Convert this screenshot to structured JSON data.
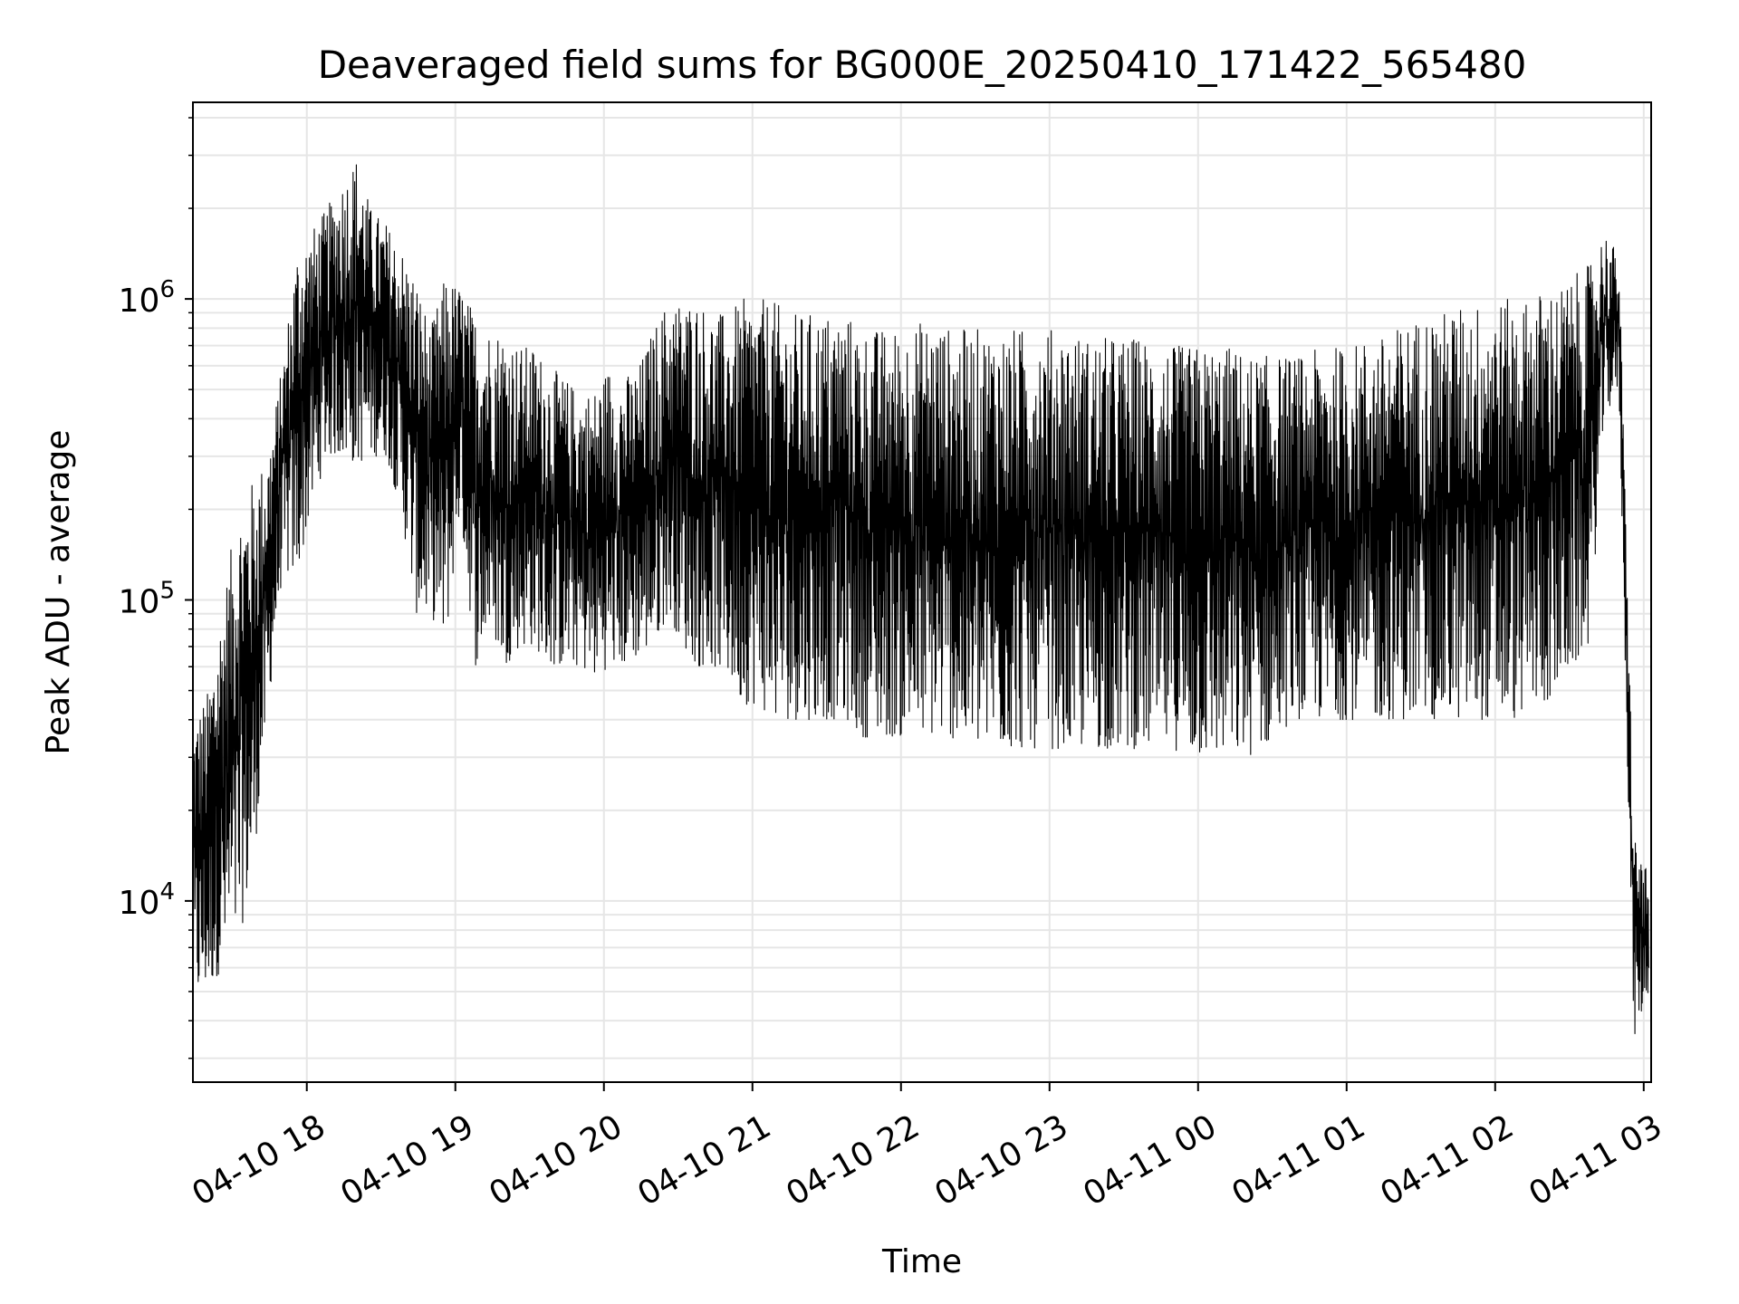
{
  "chart_data": {
    "type": "line",
    "title": "Deaveraged field sums for BG000E_20250410_171422_565480",
    "xlabel": "Time",
    "ylabel": "Peak ADU - average",
    "yscale": "log",
    "ylim": [
      2500,
      4500000
    ],
    "xlim": [
      "04-10 17:14",
      "04-11 03:03"
    ],
    "x_tick_labels": [
      "04-10 18",
      "04-10 19",
      "04-10 20",
      "04-10 21",
      "04-10 22",
      "04-10 23",
      "04-11 00",
      "04-11 01",
      "04-11 02",
      "04-11 03"
    ],
    "y_tick_labels": [
      {
        "base": "10",
        "exp": "4",
        "value": 10000
      },
      {
        "base": "10",
        "exp": "5",
        "value": 100000
      },
      {
        "base": "10",
        "exp": "6",
        "value": 1000000
      }
    ],
    "grid": true,
    "legend": "none",
    "series": [
      {
        "color": "#000000",
        "note_values": "approximate envelope traced from the plot (low/high per time slice)",
        "x": [
          "04-10 17:14",
          "04-10 17:20",
          "04-10 17:26",
          "04-10 17:32",
          "04-10 17:38",
          "04-10 17:44",
          "04-10 17:50",
          "04-10 17:56",
          "04-10 18:02",
          "04-10 18:08",
          "04-10 18:14",
          "04-10 18:20",
          "04-10 18:26",
          "04-10 18:32",
          "04-10 18:38",
          "04-10 18:44",
          "04-10 18:50",
          "04-10 18:56",
          "04-10 19:02",
          "04-10 19:08",
          "04-10 19:14",
          "04-10 19:20",
          "04-10 19:26",
          "04-10 19:32",
          "04-10 19:38",
          "04-10 19:44",
          "04-10 19:50",
          "04-10 19:56",
          "04-10 20:02",
          "04-10 20:08",
          "04-10 20:14",
          "04-10 20:20",
          "04-10 20:26",
          "04-10 20:32",
          "04-10 20:38",
          "04-10 20:44",
          "04-10 20:50",
          "04-10 20:56",
          "04-10 21:02",
          "04-10 21:08",
          "04-10 21:14",
          "04-10 21:20",
          "04-10 21:26",
          "04-10 21:32",
          "04-10 21:38",
          "04-10 21:44",
          "04-10 21:50",
          "04-10 21:56",
          "04-10 22:02",
          "04-10 22:08",
          "04-10 22:14",
          "04-10 22:20",
          "04-10 22:26",
          "04-10 22:32",
          "04-10 22:38",
          "04-10 22:44",
          "04-10 22:50",
          "04-10 22:56",
          "04-10 23:02",
          "04-10 23:08",
          "04-10 23:14",
          "04-10 23:20",
          "04-10 23:26",
          "04-10 23:32",
          "04-10 23:38",
          "04-10 23:44",
          "04-10 23:50",
          "04-10 23:56",
          "04-11 00:02",
          "04-11 00:08",
          "04-11 00:14",
          "04-11 00:20",
          "04-11 00:26",
          "04-11 00:32",
          "04-11 00:38",
          "04-11 00:44",
          "04-11 00:50",
          "04-11 00:56",
          "04-11 01:02",
          "04-11 01:08",
          "04-11 01:14",
          "04-11 01:20",
          "04-11 01:26",
          "04-11 01:32",
          "04-11 01:38",
          "04-11 01:44",
          "04-11 01:50",
          "04-11 01:56",
          "04-11 02:02",
          "04-11 02:08",
          "04-11 02:14",
          "04-11 02:20",
          "04-11 02:26",
          "04-11 02:32",
          "04-11 02:38",
          "04-11 02:44",
          "04-11 02:50",
          "04-11 02:56",
          "04-11 03:02"
        ],
        "low": [
          4500,
          5000,
          6000,
          7000,
          12000,
          40000,
          120000,
          120000,
          200000,
          300000,
          300000,
          280000,
          300000,
          300000,
          200000,
          90000,
          90000,
          70000,
          200000,
          60000,
          80000,
          60000,
          70000,
          70000,
          60000,
          60000,
          60000,
          55000,
          60000,
          60000,
          65000,
          70000,
          90000,
          70000,
          60000,
          60000,
          55000,
          45000,
          45000,
          40000,
          40000,
          40000,
          40000,
          40000,
          40000,
          35000,
          35000,
          35000,
          35000,
          35000,
          35000,
          35000,
          32000,
          32000,
          32000,
          32000,
          32000,
          32000,
          32000,
          32000,
          32000,
          32000,
          32000,
          32000,
          32000,
          32000,
          32000,
          30000,
          30000,
          30000,
          30000,
          30000,
          32000,
          35000,
          40000,
          40000,
          40000,
          40000,
          40000,
          40000,
          40000,
          40000,
          40000,
          40000,
          40000,
          40000,
          40000,
          40000,
          40000,
          40000,
          45000,
          45000,
          50000,
          60000,
          70000,
          400000,
          500000,
          3500,
          5000
        ],
        "high": [
          40000,
          50000,
          100000,
          200000,
          250000,
          300000,
          600000,
          1500000,
          1700000,
          2000000,
          2500000,
          3000000,
          2000000,
          1800000,
          1500000,
          1200000,
          800000,
          1200000,
          1100000,
          900000,
          800000,
          800000,
          700000,
          700000,
          600000,
          550000,
          500000,
          500000,
          600000,
          550000,
          600000,
          800000,
          1000000,
          1000000,
          1000000,
          900000,
          900000,
          1000000,
          1000000,
          1000000,
          900000,
          900000,
          900000,
          900000,
          900000,
          800000,
          800000,
          800000,
          800000,
          850000,
          850000,
          800000,
          800000,
          800000,
          800000,
          800000,
          800000,
          800000,
          800000,
          800000,
          750000,
          750000,
          750000,
          750000,
          750000,
          700000,
          700000,
          700000,
          700000,
          700000,
          700000,
          650000,
          650000,
          650000,
          650000,
          650000,
          700000,
          700000,
          700000,
          750000,
          750000,
          800000,
          850000,
          900000,
          900000,
          950000,
          950000,
          1000000,
          1000000,
          1000000,
          1000000,
          1100000,
          1100000,
          1200000,
          1300000,
          1700000,
          1400000,
          17000,
          12000
        ]
      }
    ]
  }
}
